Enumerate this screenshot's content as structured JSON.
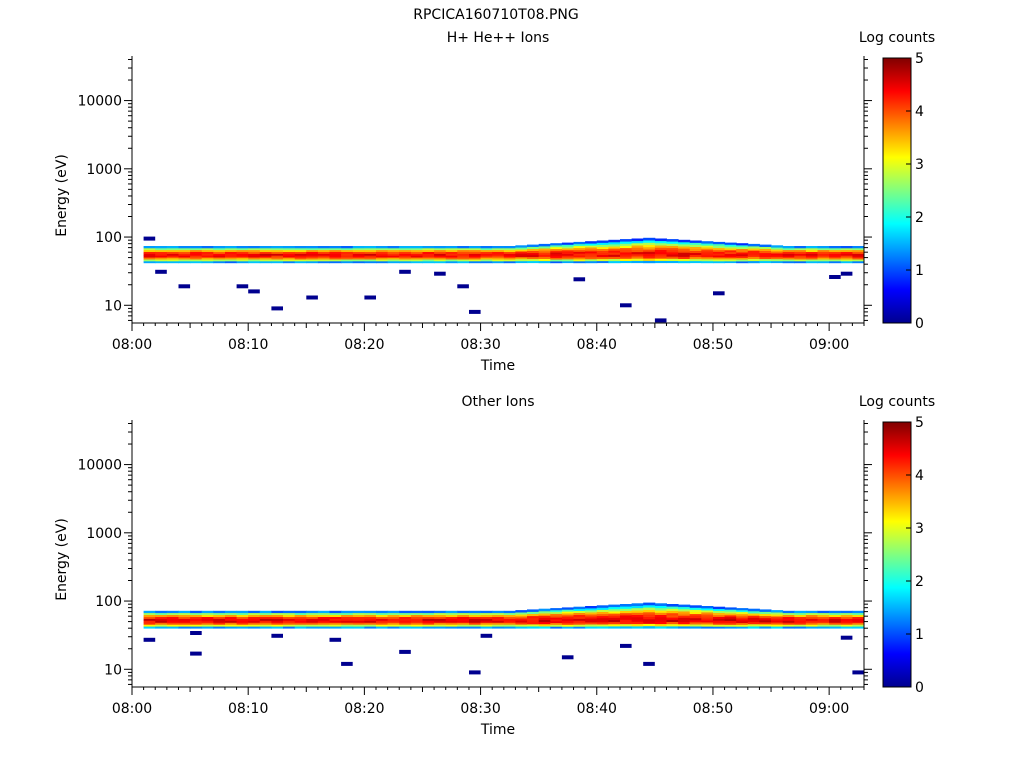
{
  "figure_title": "RPCICA160710T08.PNG",
  "colors": {
    "background": "#ffffff",
    "axis": "#000000",
    "colormap": [
      "#00008f",
      "#0000ff",
      "#0080ff",
      "#00ffff",
      "#80ff80",
      "#ffff00",
      "#ff8000",
      "#ff0000",
      "#800000"
    ]
  },
  "chart_data": [
    {
      "type": "heatmap",
      "title": "H+ He++ Ions",
      "xlabel": "Time",
      "ylabel": "Energy (eV)",
      "y_scale": "log",
      "ylim": [
        5.5,
        45000
      ],
      "xlim": [
        "08:00",
        "09:03"
      ],
      "x_ticks": [
        "08:00",
        "08:10",
        "08:20",
        "08:30",
        "08:40",
        "08:50",
        "09:00"
      ],
      "y_ticks": [
        "10",
        "100",
        "1000",
        "10000"
      ],
      "colorbar": {
        "label": "Log counts",
        "range": [
          0,
          5
        ],
        "ticks": [
          "0",
          "1",
          "2",
          "3",
          "4",
          "5"
        ]
      },
      "core_band_energy_eV": [
        42,
        74
      ],
      "peak_energy_eV": 55,
      "peak_log_counts": 4.4,
      "sparse_counts": [
        {
          "time": "08:01",
          "energy_eV": 95
        },
        {
          "time": "08:02",
          "energy_eV": 31
        },
        {
          "time": "08:04",
          "energy_eV": 19
        },
        {
          "time": "08:09",
          "energy_eV": 19
        },
        {
          "time": "08:10",
          "energy_eV": 16
        },
        {
          "time": "08:12",
          "energy_eV": 9
        },
        {
          "time": "08:15",
          "energy_eV": 13
        },
        {
          "time": "08:20",
          "energy_eV": 13
        },
        {
          "time": "08:23",
          "energy_eV": 31
        },
        {
          "time": "08:26",
          "energy_eV": 29
        },
        {
          "time": "08:28",
          "energy_eV": 19
        },
        {
          "time": "08:29",
          "energy_eV": 8
        },
        {
          "time": "08:38",
          "energy_eV": 24
        },
        {
          "time": "08:42",
          "energy_eV": 10
        },
        {
          "time": "08:45",
          "energy_eV": 6
        },
        {
          "time": "08:50",
          "energy_eV": 15
        },
        {
          "time": "09:00",
          "energy_eV": 26
        },
        {
          "time": "09:01",
          "energy_eV": 29
        }
      ]
    },
    {
      "type": "heatmap",
      "title": "Other Ions",
      "xlabel": "Time",
      "ylabel": "Energy (eV)",
      "y_scale": "log",
      "ylim": [
        5.5,
        45000
      ],
      "xlim": [
        "08:00",
        "09:03"
      ],
      "x_ticks": [
        "08:00",
        "08:10",
        "08:20",
        "08:30",
        "08:40",
        "08:50",
        "09:00"
      ],
      "y_ticks": [
        "10",
        "100",
        "1000",
        "10000"
      ],
      "colorbar": {
        "label": "Log counts",
        "range": [
          0,
          5
        ],
        "ticks": [
          "0",
          "1",
          "2",
          "3",
          "4",
          "5"
        ]
      },
      "core_band_energy_eV": [
        40,
        72
      ],
      "peak_energy_eV": 52,
      "peak_log_counts": 4.5,
      "sparse_counts": [
        {
          "time": "08:01",
          "energy_eV": 27
        },
        {
          "time": "08:05",
          "energy_eV": 34
        },
        {
          "time": "08:05",
          "energy_eV": 17
        },
        {
          "time": "08:12",
          "energy_eV": 31
        },
        {
          "time": "08:17",
          "energy_eV": 27
        },
        {
          "time": "08:18",
          "energy_eV": 12
        },
        {
          "time": "08:23",
          "energy_eV": 18
        },
        {
          "time": "08:29",
          "energy_eV": 9
        },
        {
          "time": "08:30",
          "energy_eV": 31
        },
        {
          "time": "08:37",
          "energy_eV": 15
        },
        {
          "time": "08:42",
          "energy_eV": 22
        },
        {
          "time": "08:44",
          "energy_eV": 12
        },
        {
          "time": "09:01",
          "energy_eV": 29
        },
        {
          "time": "09:02",
          "energy_eV": 9
        }
      ]
    }
  ]
}
